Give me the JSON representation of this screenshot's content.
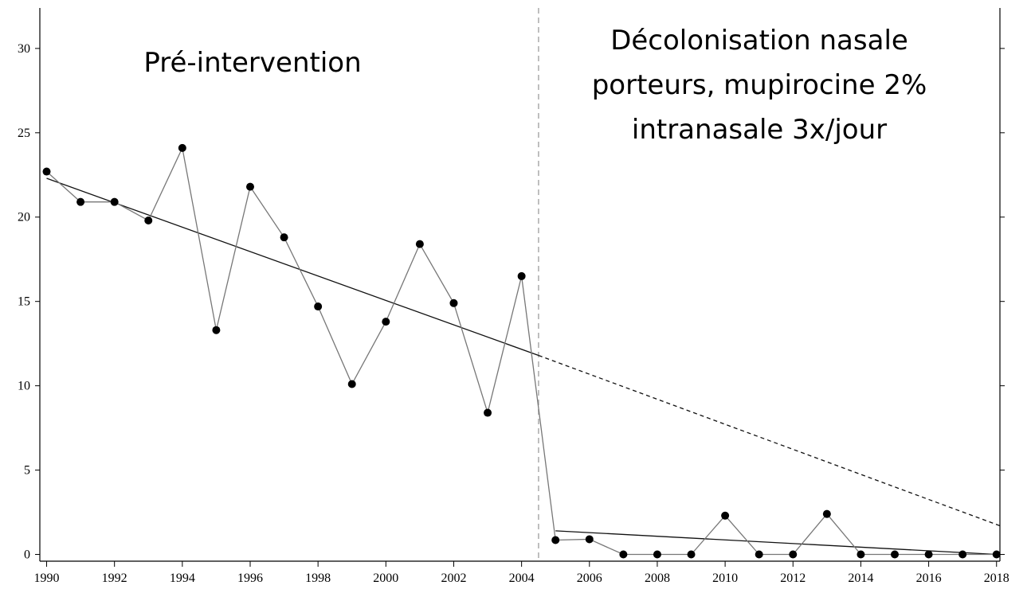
{
  "chart_data": {
    "type": "line",
    "annotations": [
      [
        "Pré-intervention"
      ],
      [
        "Décolonisation nasale",
        "porteurs, mupirocine 2%",
        "intranasale 3x/jour"
      ]
    ],
    "x": [
      1990,
      1991,
      1992,
      1993,
      1994,
      1995,
      1996,
      1997,
      1998,
      1999,
      2000,
      2001,
      2002,
      2003,
      2004,
      2005,
      2006,
      2007,
      2008,
      2009,
      2010,
      2011,
      2012,
      2013,
      2014,
      2015,
      2016,
      2017,
      2018
    ],
    "series": [
      {
        "color": "#000000",
        "line_color": "#777777",
        "values": [
          22.7,
          20.9,
          20.9,
          19.8,
          24.1,
          13.3,
          21.8,
          18.8,
          14.7,
          10.1,
          13.8,
          18.4,
          14.9,
          8.4,
          16.5,
          0.85,
          0.9,
          0,
          0,
          0,
          2.3,
          0,
          0,
          2.4,
          0,
          0,
          0,
          0,
          0
        ]
      }
    ],
    "trend_lines": [
      {
        "style": "solid",
        "x": [
          1990,
          2004.5
        ],
        "values": [
          22.3,
          11.8
        ]
      },
      {
        "style": "dashed",
        "x": [
          2004.5,
          2018.1
        ],
        "values": [
          11.8,
          1.7
        ]
      },
      {
        "style": "solid",
        "x": [
          2005,
          2018
        ],
        "values": [
          1.4,
          0
        ]
      }
    ],
    "intervention_x": 2004.5,
    "xlim": [
      1989.8,
      2018.1
    ],
    "xticks": [
      1990,
      1992,
      1994,
      1996,
      1998,
      2000,
      2002,
      2004,
      2006,
      2008,
      2010,
      2012,
      2014,
      2016,
      2018
    ],
    "ylim": [
      -0.4,
      32.4
    ],
    "yticks": [
      0,
      5,
      10,
      15,
      20,
      25,
      30
    ]
  }
}
